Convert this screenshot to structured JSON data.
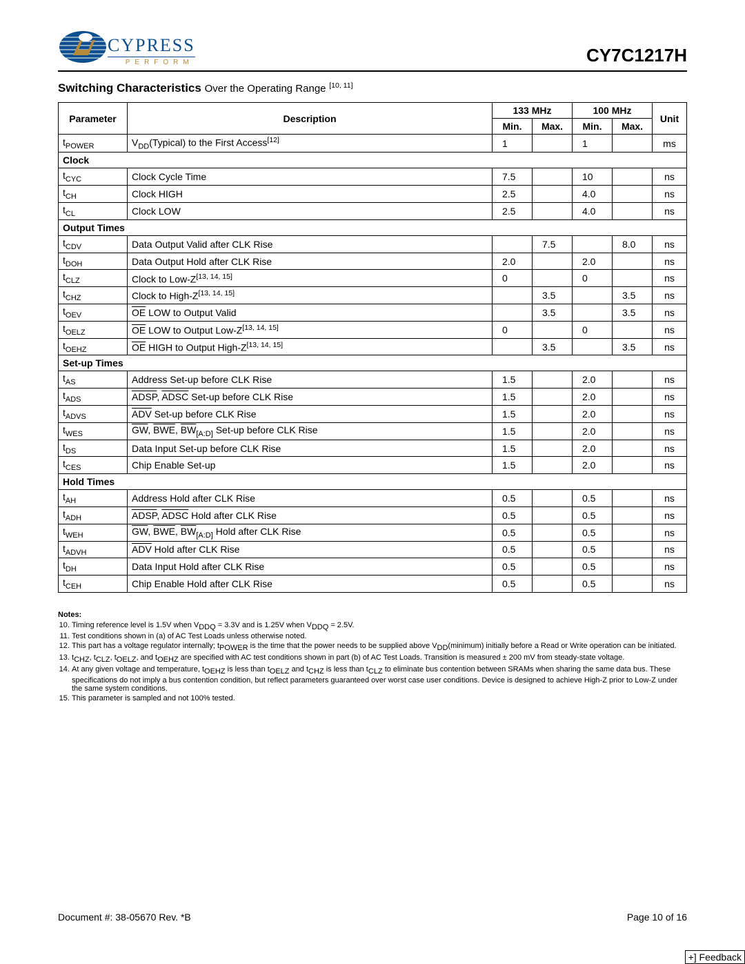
{
  "brand": {
    "name": "CYPRESS",
    "sub": "PERFORM"
  },
  "part_number": "CY7C1217H",
  "section_title": "Switching Characteristics",
  "section_sub": "Over the Operating Range",
  "section_refs": "[10, 11]",
  "columns": {
    "parameter": "Parameter",
    "description": "Description",
    "freq1": "133 MHz",
    "freq2": "100 MHz",
    "min": "Min.",
    "max": "Max.",
    "unit": "Unit"
  },
  "rows": {
    "tpower": {
      "param_base": "t",
      "param_sub": "POWER",
      "desc_html": "V<sub>DD</sub>(Typical) to the First Access<sup>[12]</sup>",
      "f1min": "1",
      "f1max": "",
      "f2min": "1",
      "f2max": "",
      "unit": "ms"
    },
    "clock_hdr": {
      "section": "Clock"
    },
    "tcyc": {
      "param_base": "t",
      "param_sub": "CYC",
      "desc_html": "Clock Cycle Time",
      "f1min": "7.5",
      "f1max": "",
      "f2min": "10",
      "f2max": "",
      "unit": "ns"
    },
    "tch": {
      "param_base": "t",
      "param_sub": "CH",
      "desc_html": "Clock HIGH",
      "f1min": "2.5",
      "f1max": "",
      "f2min": "4.0",
      "f2max": "",
      "unit": "ns"
    },
    "tcl": {
      "param_base": "t",
      "param_sub": "CL",
      "desc_html": "Clock LOW",
      "f1min": "2.5",
      "f1max": "",
      "f2min": "4.0",
      "f2max": "",
      "unit": "ns"
    },
    "output_hdr": {
      "section": "Output Times"
    },
    "tcdv": {
      "param_base": "t",
      "param_sub": "CDV",
      "desc_html": "Data Output Valid after CLK Rise",
      "f1min": "",
      "f1max": "7.5",
      "f2min": "",
      "f2max": "8.0",
      "unit": "ns"
    },
    "tdoh": {
      "param_base": "t",
      "param_sub": "DOH",
      "desc_html": "Data Output Hold after CLK Rise",
      "f1min": "2.0",
      "f1max": "",
      "f2min": "2.0",
      "f2max": "",
      "unit": "ns"
    },
    "tclz": {
      "param_base": "t",
      "param_sub": "CLZ",
      "desc_html": "Clock to Low-Z<sup>[13, 14, 15]</sup>",
      "f1min": "0",
      "f1max": "",
      "f2min": "0",
      "f2max": "",
      "unit": "ns"
    },
    "tchz": {
      "param_base": "t",
      "param_sub": "CHZ",
      "desc_html": "Clock to High-Z<sup>[13, 14, 15]</sup>",
      "f1min": "",
      "f1max": "3.5",
      "f2min": "",
      "f2max": "3.5",
      "unit": "ns"
    },
    "toev": {
      "param_base": "t",
      "param_sub": "OEV",
      "desc_html": "<span class=\"ov\">OE</span> LOW to Output Valid",
      "f1min": "",
      "f1max": "3.5",
      "f2min": "",
      "f2max": "3.5",
      "unit": "ns"
    },
    "toelz": {
      "param_base": "t",
      "param_sub": "OELZ",
      "desc_html": "<span class=\"ov\">OE</span> LOW to Output Low-Z<sup>[13, 14, 15]</sup>",
      "f1min": "0",
      "f1max": "",
      "f2min": "0",
      "f2max": "",
      "unit": "ns"
    },
    "toehz": {
      "param_base": "t",
      "param_sub": "OEHZ",
      "desc_html": "<span class=\"ov\">OE</span> HIGH to Output High-Z<sup>[13, 14, 15]</sup>",
      "f1min": "",
      "f1max": "3.5",
      "f2min": "",
      "f2max": "3.5",
      "unit": "ns"
    },
    "setup_hdr": {
      "section": "Set-up Times"
    },
    "tas": {
      "param_base": "t",
      "param_sub": "AS",
      "desc_html": "Address Set-up before CLK Rise",
      "f1min": "1.5",
      "f1max": "",
      "f2min": "2.0",
      "f2max": "",
      "unit": "ns"
    },
    "tads": {
      "param_base": "t",
      "param_sub": "ADS",
      "desc_html": "<span class=\"ov\">ADSP</span>, <span class=\"ov\">ADSC</span> Set-up before CLK Rise",
      "f1min": "1.5",
      "f1max": "",
      "f2min": "2.0",
      "f2max": "",
      "unit": "ns"
    },
    "tadvs": {
      "param_base": "t",
      "param_sub": "ADVS",
      "desc_html": "<span class=\"ov\">ADV</span> Set-up before CLK Rise",
      "f1min": "1.5",
      "f1max": "",
      "f2min": "2.0",
      "f2max": "",
      "unit": "ns"
    },
    "twes": {
      "param_base": "t",
      "param_sub": "WES",
      "desc_html": "<span class=\"ov\">GW</span>, <span class=\"ov\">BWE</span>, <span class=\"ov\">BW</span><sub>[A:D]</sub> Set-up before CLK Rise",
      "f1min": "1.5",
      "f1max": "",
      "f2min": "2.0",
      "f2max": "",
      "unit": "ns"
    },
    "tds": {
      "param_base": "t",
      "param_sub": "DS",
      "desc_html": "Data Input Set-up before CLK Rise",
      "f1min": "1.5",
      "f1max": "",
      "f2min": "2.0",
      "f2max": "",
      "unit": "ns"
    },
    "tces": {
      "param_base": "t",
      "param_sub": "CES",
      "desc_html": "Chip Enable Set-up",
      "f1min": "1.5",
      "f1max": "",
      "f2min": "2.0",
      "f2max": "",
      "unit": "ns"
    },
    "hold_hdr": {
      "section": "Hold Times"
    },
    "tah": {
      "param_base": "t",
      "param_sub": "AH",
      "desc_html": "Address Hold after CLK Rise",
      "f1min": "0.5",
      "f1max": "",
      "f2min": "0.5",
      "f2max": "",
      "unit": "ns"
    },
    "tadh": {
      "param_base": "t",
      "param_sub": "ADH",
      "desc_html": "<span class=\"ov\">ADSP</span>, <span class=\"ov\">ADSC</span> Hold after CLK Rise",
      "f1min": "0.5",
      "f1max": "",
      "f2min": "0.5",
      "f2max": "",
      "unit": "ns"
    },
    "tweh": {
      "param_base": "t",
      "param_sub": "WEH",
      "desc_html": "<span class=\"ov\">GW</span>, <span class=\"ov\">BWE</span>, <span class=\"ov\">BW</span><sub>[A:D]</sub> Hold after CLK Rise",
      "f1min": "0.5",
      "f1max": "",
      "f2min": "0.5",
      "f2max": "",
      "unit": "ns"
    },
    "tadvh": {
      "param_base": "t",
      "param_sub": "ADVH",
      "desc_html": "<span class=\"ov\">ADV</span> Hold after CLK Rise",
      "f1min": "0.5",
      "f1max": "",
      "f2min": "0.5",
      "f2max": "",
      "unit": "ns"
    },
    "tdh": {
      "param_base": "t",
      "param_sub": "DH",
      "desc_html": "Data Input Hold after CLK Rise",
      "f1min": "0.5",
      "f1max": "",
      "f2min": "0.5",
      "f2max": "",
      "unit": "ns"
    },
    "tceh": {
      "param_base": "t",
      "param_sub": "CEH",
      "desc_html": "Chip Enable Hold after CLK Rise",
      "f1min": "0.5",
      "f1max": "",
      "f2min": "0.5",
      "f2max": "",
      "unit": "ns"
    }
  },
  "row_order": [
    "tpower",
    "clock_hdr",
    "tcyc",
    "tch",
    "tcl",
    "output_hdr",
    "tcdv",
    "tdoh",
    "tclz",
    "tchz",
    "toev",
    "toelz",
    "toehz",
    "setup_hdr",
    "tas",
    "tads",
    "tadvs",
    "twes",
    "tds",
    "tces",
    "hold_hdr",
    "tah",
    "tadh",
    "tweh",
    "tadvh",
    "tdh",
    "tceh"
  ],
  "notes": {
    "header": "Notes:",
    "items": [
      "Timing reference level is 1.5V when V<sub>DDQ</sub> = 3.3V and is 1.25V when V<sub>DDQ</sub> = 2.5V.",
      "Test conditions shown in (a) of AC Test Loads unless otherwise noted.",
      "This part has a voltage regulator internally; t<sub>POWER</sub> is the time that the power needs to be supplied above V<sub>DD</sub>(minimum) initially before a Read or Write operation can be initiated.",
      "t<sub>CHZ</sub>, t<sub>CLZ</sub>, t<sub>OELZ</sub>, and t<sub>OEHZ</sub> are specified with AC test conditions shown in part (b) of AC Test Loads. Transition is measured ± 200 mV from steady-state voltage.",
      "At any given voltage and temperature, t<sub>OEHZ</sub> is less than t<sub>OELZ</sub> and t<sub>CHZ</sub> is less than t<sub>CLZ</sub> to eliminate bus contention between SRAMs when sharing the same data bus. These specifications do not imply a bus contention condition, but reflect parameters guaranteed over worst case user conditions. Device is designed to achieve High-Z prior to Low-Z under the same system conditions.",
      "This parameter is sampled and not 100% tested."
    ],
    "start": 10
  },
  "footer": {
    "doc": "Document #: 38-05670 Rev. *B",
    "page": "Page 10 of 16"
  },
  "feedback": "+] Feedback"
}
